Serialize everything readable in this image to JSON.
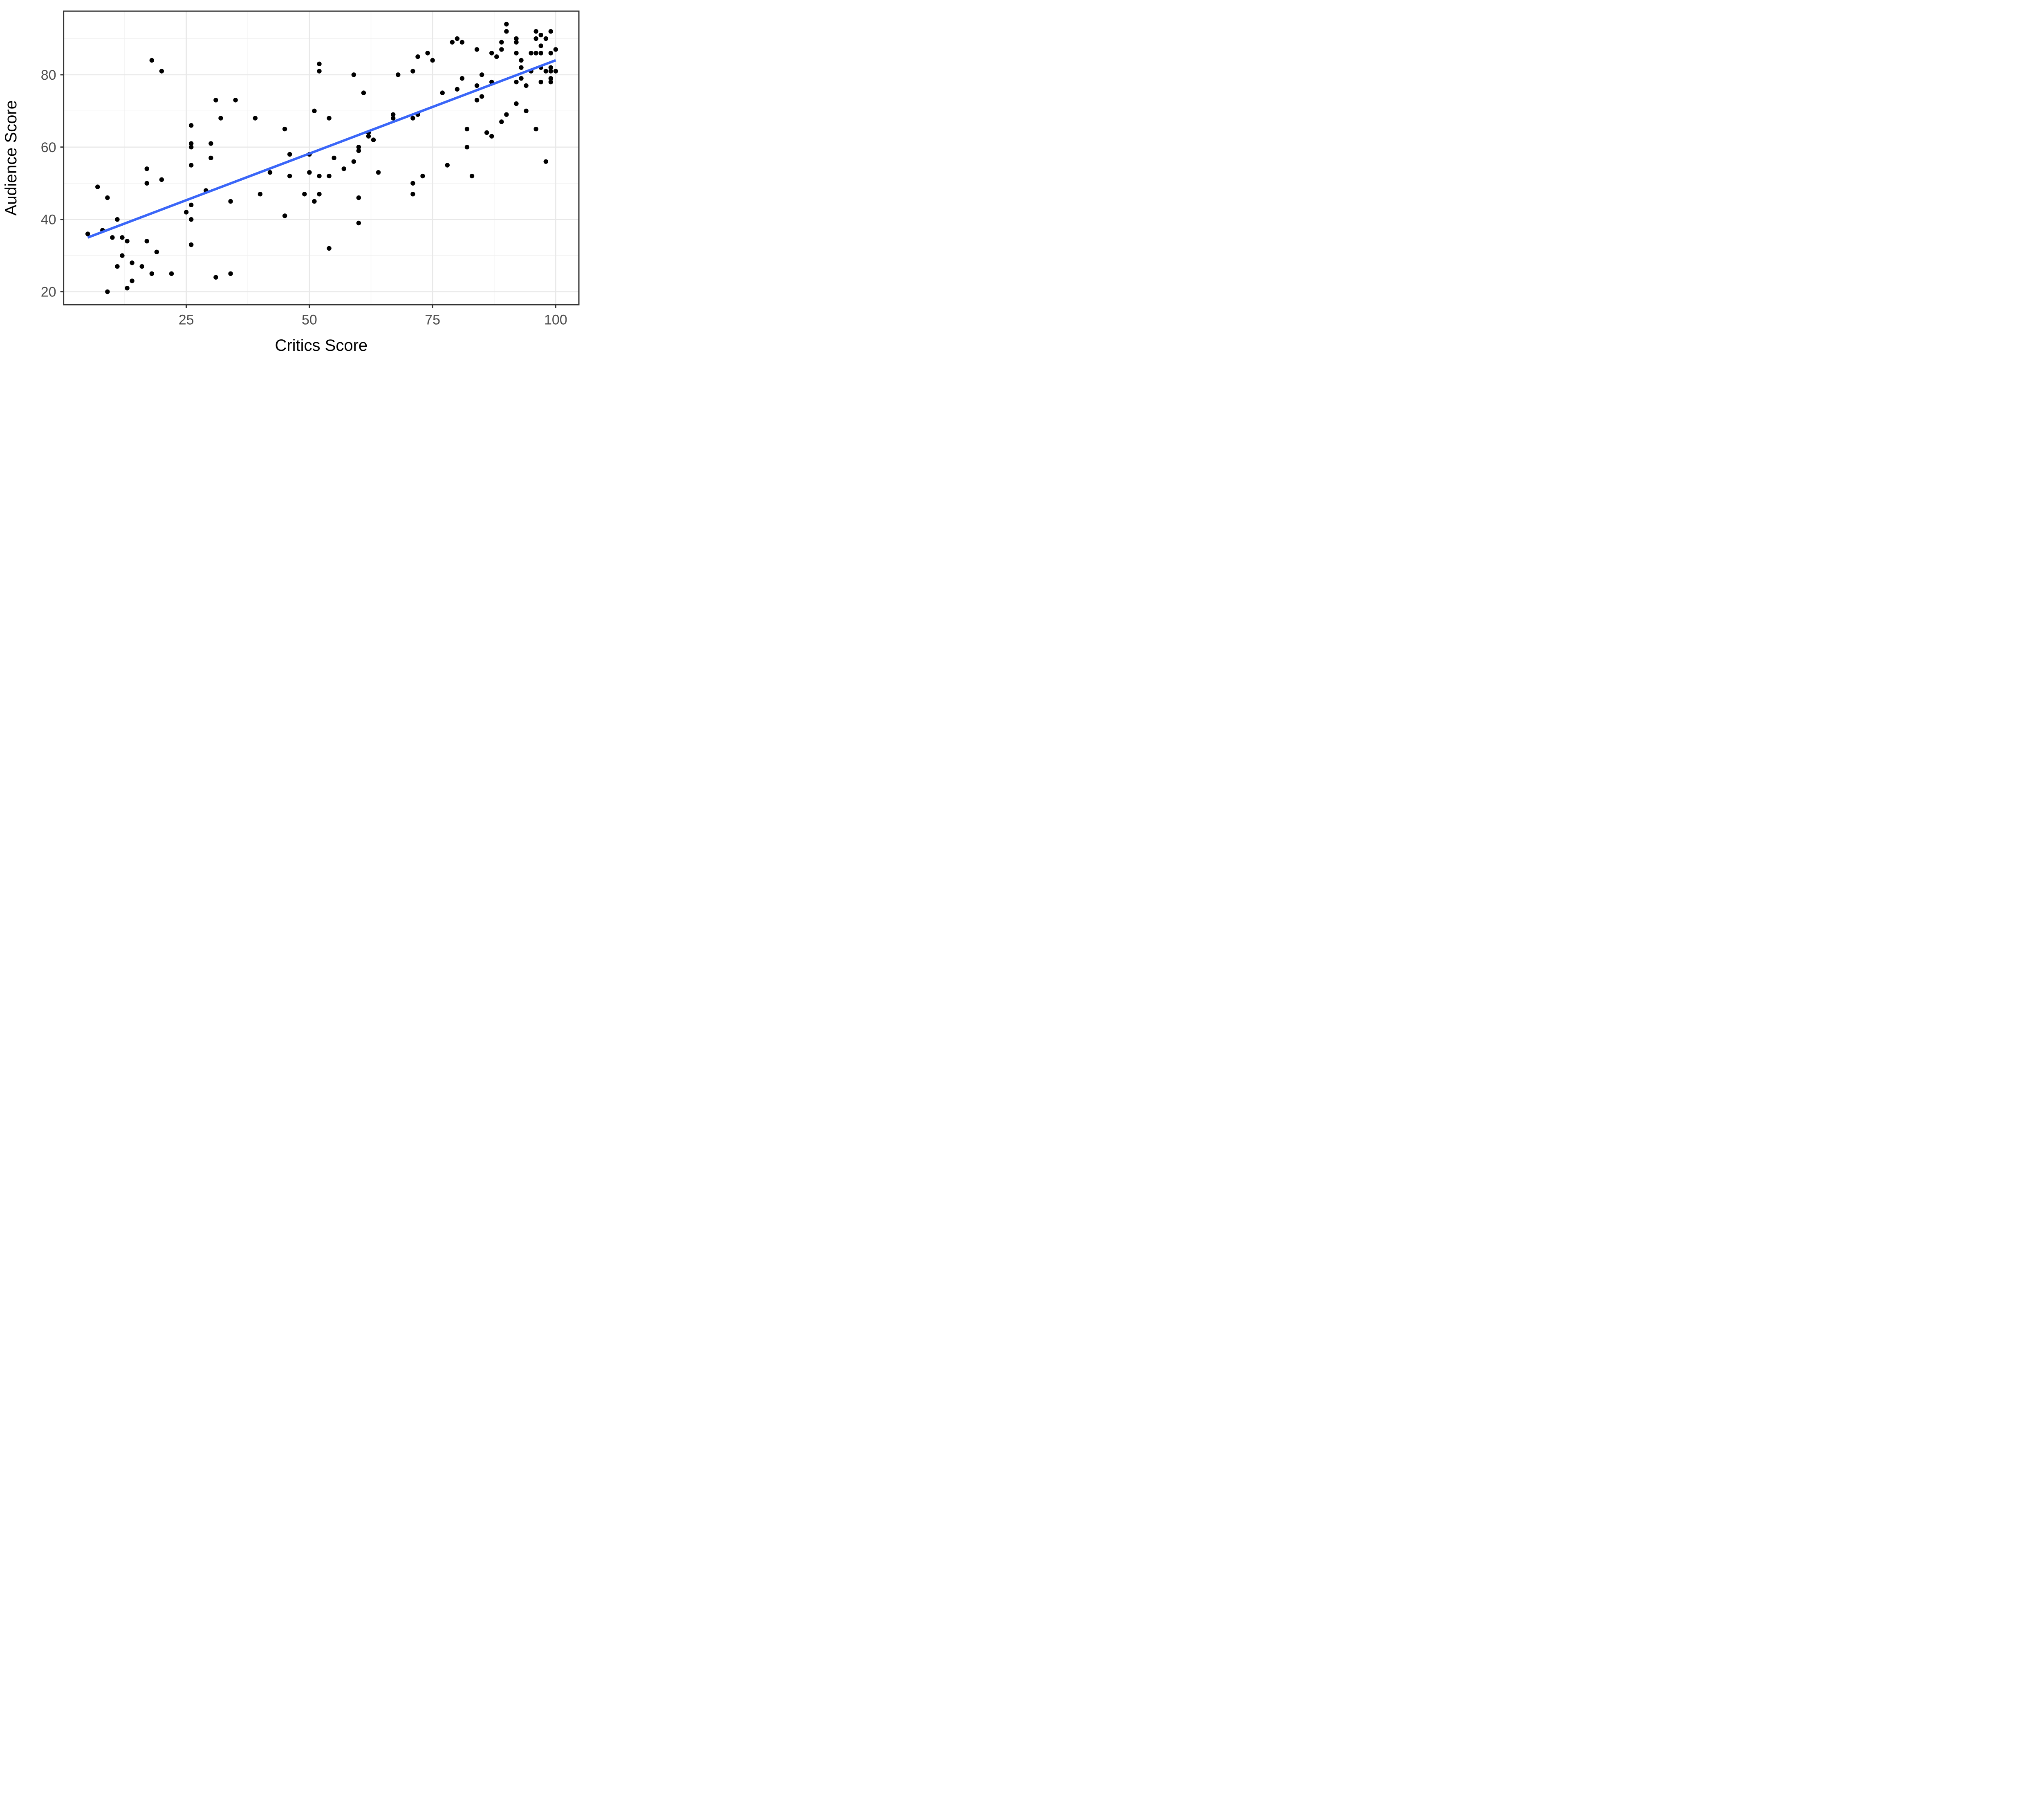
{
  "chart_data": {
    "type": "scatter",
    "title": "",
    "xlabel": "Critics Score",
    "ylabel": "Audience Score",
    "xlim": [
      0.1,
      104.7
    ],
    "ylim": [
      16.4,
      97.6
    ],
    "x_major_ticks": [
      25,
      50,
      75,
      100
    ],
    "y_major_ticks": [
      20,
      40,
      60,
      80
    ],
    "x_minor_gridlines": [
      12.5,
      37.5,
      62.5,
      87.5
    ],
    "y_minor_gridlines": [
      30,
      50,
      70,
      90
    ],
    "grid": "on",
    "legend_position": "none",
    "theme": {
      "panel_background": "#FFFFFF",
      "major_grid_color": "#E8E8E8",
      "minor_grid_color": "#F0F0F0",
      "panel_border_color": "#333333",
      "tick_mark_color": "#333333",
      "tick_label_color": "#4D4D4D",
      "axis_title_color": "#000000",
      "point_color": "#000000",
      "trend_line_color": "#3A66F8"
    },
    "trend_line": {
      "x1": 5,
      "y1": 35,
      "x2": 100,
      "y2": 84
    },
    "points": [
      [
        5,
        36
      ],
      [
        7,
        49
      ],
      [
        8,
        37
      ],
      [
        9,
        46
      ],
      [
        9,
        20
      ],
      [
        10,
        35
      ],
      [
        11,
        40
      ],
      [
        11,
        27
      ],
      [
        12,
        35
      ],
      [
        12,
        30
      ],
      [
        13,
        34
      ],
      [
        13,
        21
      ],
      [
        14,
        28
      ],
      [
        14,
        23
      ],
      [
        16,
        27
      ],
      [
        17,
        54
      ],
      [
        17,
        50
      ],
      [
        17,
        34
      ],
      [
        18,
        84
      ],
      [
        18,
        25
      ],
      [
        19,
        31
      ],
      [
        20,
        81
      ],
      [
        20,
        51
      ],
      [
        22,
        25
      ],
      [
        25,
        42
      ],
      [
        26,
        66
      ],
      [
        26,
        61
      ],
      [
        26,
        60
      ],
      [
        26,
        55
      ],
      [
        26,
        44
      ],
      [
        26,
        40
      ],
      [
        26,
        33
      ],
      [
        29,
        48
      ],
      [
        30,
        61
      ],
      [
        30,
        57
      ],
      [
        31,
        73
      ],
      [
        31,
        24
      ],
      [
        32,
        68
      ],
      [
        34,
        45
      ],
      [
        34,
        25
      ],
      [
        35,
        73
      ],
      [
        39,
        68
      ],
      [
        40,
        47
      ],
      [
        42,
        53
      ],
      [
        45,
        65
      ],
      [
        45,
        41
      ],
      [
        46,
        58
      ],
      [
        46,
        52
      ],
      [
        49,
        47
      ],
      [
        50,
        58
      ],
      [
        50,
        53
      ],
      [
        51,
        70
      ],
      [
        51,
        45
      ],
      [
        52,
        83
      ],
      [
        52,
        81
      ],
      [
        52,
        52
      ],
      [
        52,
        47
      ],
      [
        54,
        68
      ],
      [
        54,
        52
      ],
      [
        54,
        32
      ],
      [
        55,
        57
      ],
      [
        57,
        54
      ],
      [
        59,
        80
      ],
      [
        59,
        56
      ],
      [
        60,
        60
      ],
      [
        60,
        59
      ],
      [
        60,
        46
      ],
      [
        60,
        39
      ],
      [
        61,
        75
      ],
      [
        62,
        64
      ],
      [
        62,
        63
      ],
      [
        63,
        62
      ],
      [
        64,
        53
      ],
      [
        67,
        69
      ],
      [
        67,
        68
      ],
      [
        68,
        80
      ],
      [
        71,
        81
      ],
      [
        71,
        68
      ],
      [
        71,
        50
      ],
      [
        71,
        47
      ],
      [
        72,
        85
      ],
      [
        72,
        69
      ],
      [
        73,
        52
      ],
      [
        74,
        86
      ],
      [
        75,
        84
      ],
      [
        77,
        75
      ],
      [
        78,
        55
      ],
      [
        79,
        89
      ],
      [
        80,
        90
      ],
      [
        80,
        76
      ],
      [
        81,
        89
      ],
      [
        81,
        79
      ],
      [
        82,
        65
      ],
      [
        82,
        60
      ],
      [
        83,
        52
      ],
      [
        84,
        87
      ],
      [
        84,
        77
      ],
      [
        84,
        73
      ],
      [
        85,
        80
      ],
      [
        85,
        74
      ],
      [
        86,
        64
      ],
      [
        87,
        86
      ],
      [
        87,
        78
      ],
      [
        87,
        63
      ],
      [
        88,
        85
      ],
      [
        89,
        89
      ],
      [
        89,
        87
      ],
      [
        89,
        67
      ],
      [
        90,
        94
      ],
      [
        90,
        92
      ],
      [
        90,
        69
      ],
      [
        92,
        90
      ],
      [
        92,
        89
      ],
      [
        92,
        86
      ],
      [
        92,
        78
      ],
      [
        92,
        72
      ],
      [
        93,
        84
      ],
      [
        93,
        82
      ],
      [
        93,
        79
      ],
      [
        94,
        77
      ],
      [
        94,
        70
      ],
      [
        95,
        86
      ],
      [
        95,
        81
      ],
      [
        96,
        92
      ],
      [
        96,
        90
      ],
      [
        96,
        86
      ],
      [
        96,
        65
      ],
      [
        97,
        91
      ],
      [
        97,
        88
      ],
      [
        97,
        86
      ],
      [
        97,
        82
      ],
      [
        97,
        78
      ],
      [
        98,
        90
      ],
      [
        98,
        81
      ],
      [
        98,
        56
      ],
      [
        99,
        92
      ],
      [
        99,
        86
      ],
      [
        99,
        82
      ],
      [
        99,
        81
      ],
      [
        99,
        79
      ],
      [
        99,
        78
      ],
      [
        100,
        87
      ],
      [
        100,
        81
      ]
    ]
  },
  "layout_note": {
    "panel": "white panel, light gray major/minor grid, dark panel border, outward ticks"
  }
}
